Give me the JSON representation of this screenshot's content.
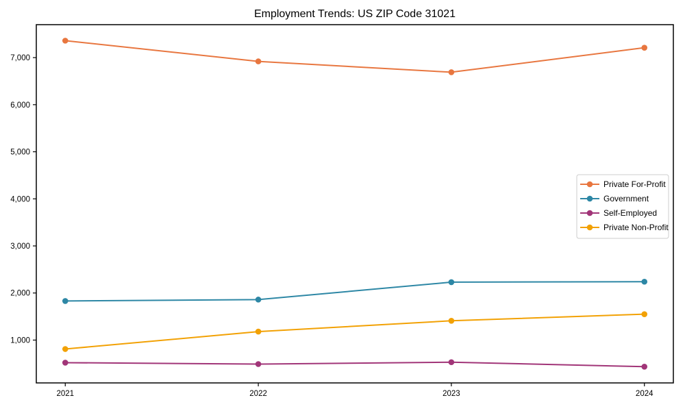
{
  "page": {
    "background": "#ffffff",
    "text_color": "#000000"
  },
  "chart_data": {
    "type": "line",
    "title": "Employment Trends: US ZIP Code 31021",
    "xlabel": "",
    "ylabel": "",
    "x": [
      2021,
      2022,
      2023,
      2024
    ],
    "x_tick_labels": [
      "2021",
      "2022",
      "2023",
      "2024"
    ],
    "y_ticks": {
      "values": [
        1000,
        2000,
        3000,
        4000,
        5000,
        6000,
        7000
      ],
      "labels": [
        "1,000",
        "2,000",
        "3,000",
        "4,000",
        "5,000",
        "6,000",
        "7,000"
      ]
    },
    "xlim": [
      2020.85,
      2024.15
    ],
    "ylim": [
      90,
      7700
    ],
    "grid": false,
    "legend_position": "right-middle",
    "legend_border_color": "#cccccc",
    "series": [
      {
        "name": "Private For-Profit",
        "color": "#e8763f",
        "marker": "circle",
        "values": [
          7360,
          6920,
          6690,
          7210
        ]
      },
      {
        "name": "Government",
        "color": "#2d87a5",
        "marker": "circle",
        "values": [
          1830,
          1860,
          2230,
          2240
        ]
      },
      {
        "name": "Self-Employed",
        "color": "#a13578",
        "marker": "circle",
        "values": [
          520,
          490,
          530,
          435
        ]
      },
      {
        "name": "Private Non-Profit",
        "color": "#f2a104",
        "marker": "circle",
        "values": [
          810,
          1180,
          1410,
          1550
        ]
      }
    ]
  }
}
